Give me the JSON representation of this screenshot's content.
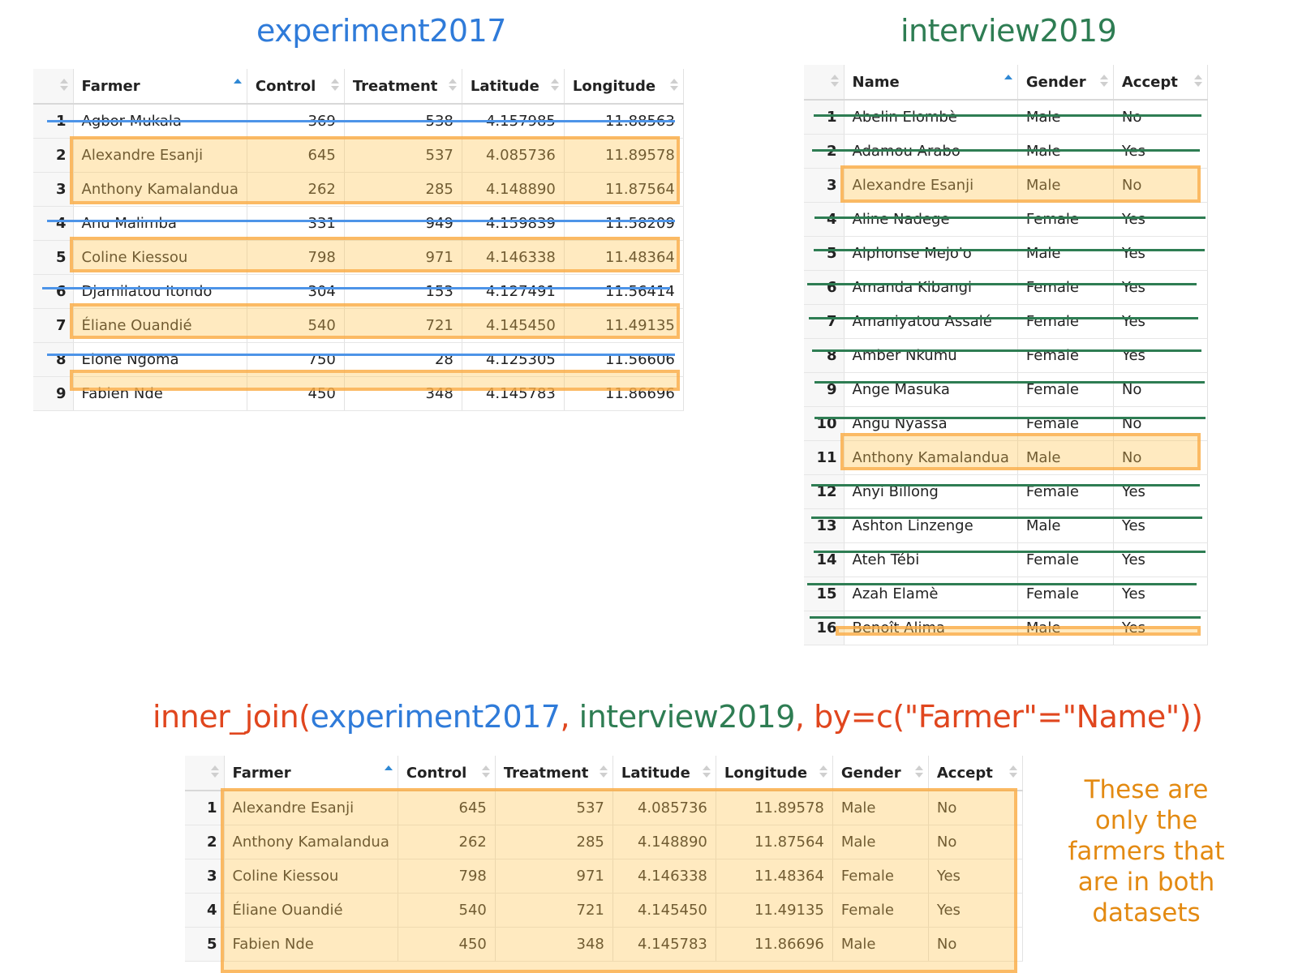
{
  "experiment": {
    "title": "experiment2017",
    "columns": [
      "",
      "Farmer",
      "Control",
      "Treatment",
      "Latitude",
      "Longitude"
    ],
    "rows": [
      [
        "1",
        "Agbor Mukala",
        "369",
        "538",
        "4.157985",
        "11.88563"
      ],
      [
        "2",
        "Alexandre Esanji",
        "645",
        "537",
        "4.085736",
        "11.89578"
      ],
      [
        "3",
        "Anthony Kamalandua",
        "262",
        "285",
        "4.148890",
        "11.87564"
      ],
      [
        "4",
        "Anu Malimba",
        "331",
        "949",
        "4.159839",
        "11.58209"
      ],
      [
        "5",
        "Coline Kiessou",
        "798",
        "971",
        "4.146338",
        "11.48364"
      ],
      [
        "6",
        "Djamilatou Itondo",
        "304",
        "153",
        "4.127491",
        "11.56414"
      ],
      [
        "7",
        "Éliane Ouandié",
        "540",
        "721",
        "4.145450",
        "11.49135"
      ],
      [
        "8",
        "Elone Ngoma",
        "750",
        "28",
        "4.125305",
        "11.56606"
      ],
      [
        "9",
        "Fabien Nde",
        "450",
        "348",
        "4.145783",
        "11.86696"
      ]
    ]
  },
  "interview": {
    "title": "interview2019",
    "columns": [
      "",
      "Name",
      "Gender",
      "Accept"
    ],
    "rows": [
      [
        "1",
        "Abelin Elombè",
        "Male",
        "No"
      ],
      [
        "2",
        "Adamou Arabo",
        "Male",
        "Yes"
      ],
      [
        "3",
        "Alexandre Esanji",
        "Male",
        "No"
      ],
      [
        "4",
        "Aline Nadege",
        "Female",
        "Yes"
      ],
      [
        "5",
        "Alphonse Mejo'o",
        "Male",
        "Yes"
      ],
      [
        "6",
        "Amanda Kibangi",
        "Female",
        "Yes"
      ],
      [
        "7",
        "Amaniyatou Assalé",
        "Female",
        "Yes"
      ],
      [
        "8",
        "Amber Nkumu",
        "Female",
        "Yes"
      ],
      [
        "9",
        "Ange Masuka",
        "Female",
        "No"
      ],
      [
        "10",
        "Angu Nyassa",
        "Female",
        "No"
      ],
      [
        "11",
        "Anthony Kamalandua",
        "Male",
        "No"
      ],
      [
        "12",
        "Anyi Billong",
        "Female",
        "Yes"
      ],
      [
        "13",
        "Ashton Linzenge",
        "Male",
        "Yes"
      ],
      [
        "14",
        "Ateh Tébi",
        "Female",
        "Yes"
      ],
      [
        "15",
        "Azah Elamè",
        "Female",
        "Yes"
      ],
      [
        "16",
        "Benoît Alima",
        "Male",
        "Yes"
      ]
    ]
  },
  "join": {
    "code": {
      "fn": "inner_join(",
      "arg1": "experiment2017",
      "sep1": ", ",
      "arg2": "interview2019",
      "rest": ", by=c(\"Farmer\"=\"Name\"))"
    },
    "columns": [
      "",
      "Farmer",
      "Control",
      "Treatment",
      "Latitude",
      "Longitude",
      "Gender",
      "Accept"
    ],
    "rows": [
      [
        "1",
        "Alexandre Esanji",
        "645",
        "537",
        "4.085736",
        "11.89578",
        "Male",
        "No"
      ],
      [
        "2",
        "Anthony Kamalandua",
        "262",
        "285",
        "4.148890",
        "11.87564",
        "Male",
        "No"
      ],
      [
        "3",
        "Coline Kiessou",
        "798",
        "971",
        "4.146338",
        "11.48364",
        "Female",
        "Yes"
      ],
      [
        "4",
        "Éliane Ouandié",
        "540",
        "721",
        "4.145450",
        "11.49135",
        "Female",
        "Yes"
      ],
      [
        "5",
        "Fabien Nde",
        "450",
        "348",
        "4.145783",
        "11.86696",
        "Male",
        "No"
      ]
    ]
  },
  "note": [
    "These are",
    "only the",
    "farmers that",
    "are in both",
    "datasets"
  ],
  "colors": {
    "experiment": "#2f7bd9",
    "interview": "#2e7d53",
    "join_fn": "#e0461e",
    "highlight": "#ffc450",
    "note": "#e38a12"
  }
}
